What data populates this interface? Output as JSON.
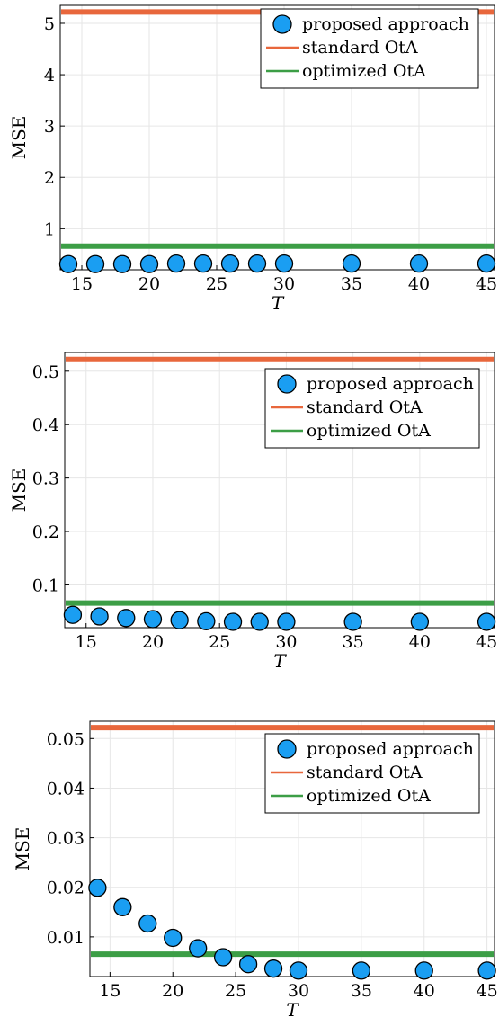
{
  "chart_data": [
    {
      "type": "scatter",
      "xlabel": "T",
      "ylabel": "MSE",
      "xlim": [
        13.4,
        45.6
      ],
      "ylim": [
        0.2,
        5.35
      ],
      "xticks": [
        15,
        20,
        25,
        30,
        35,
        40,
        45
      ],
      "yticks": [
        1,
        2,
        3,
        4,
        5
      ],
      "ytick_labels": [
        "1",
        "2",
        "3",
        "4",
        "5"
      ],
      "grid": true,
      "legend_position": "top-right",
      "series": [
        {
          "name": "proposed approach",
          "kind": "points",
          "color": "#1a9ef2",
          "x": [
            14,
            16,
            18,
            20,
            22,
            24,
            26,
            28,
            30,
            35,
            40,
            45
          ],
          "y": [
            0.31,
            0.31,
            0.31,
            0.31,
            0.32,
            0.32,
            0.32,
            0.32,
            0.32,
            0.32,
            0.32,
            0.32
          ]
        },
        {
          "name": "standard OtA",
          "kind": "hline",
          "color": "#e8673c",
          "y": 5.22
        },
        {
          "name": "optimized OtA",
          "kind": "hline",
          "color": "#3c9e46",
          "y": 0.66
        }
      ]
    },
    {
      "type": "scatter",
      "xlabel": "T",
      "ylabel": "MSE",
      "xlim": [
        13.4,
        45.6
      ],
      "ylim": [
        0.02,
        0.535
      ],
      "xticks": [
        15,
        20,
        25,
        30,
        35,
        40,
        45
      ],
      "yticks": [
        0.1,
        0.2,
        0.3,
        0.4,
        0.5
      ],
      "ytick_labels": [
        "0.1",
        "0.2",
        "0.3",
        "0.4",
        "0.5"
      ],
      "grid": true,
      "legend_position": "top-right",
      "series": [
        {
          "name": "proposed approach",
          "kind": "points",
          "color": "#1a9ef2",
          "x": [
            14,
            16,
            18,
            20,
            22,
            24,
            26,
            28,
            30,
            35,
            40,
            45
          ],
          "y": [
            0.044,
            0.041,
            0.038,
            0.036,
            0.034,
            0.032,
            0.031,
            0.031,
            0.031,
            0.031,
            0.031,
            0.031
          ]
        },
        {
          "name": "standard OtA",
          "kind": "hline",
          "color": "#e8673c",
          "y": 0.522
        },
        {
          "name": "optimized OtA",
          "kind": "hline",
          "color": "#3c9e46",
          "y": 0.066
        }
      ]
    },
    {
      "type": "scatter",
      "xlabel": "T",
      "ylabel": "MSE",
      "xlim": [
        13.4,
        45.6
      ],
      "ylim": [
        0.002,
        0.0535
      ],
      "xticks": [
        15,
        20,
        25,
        30,
        35,
        40,
        45
      ],
      "yticks": [
        0.01,
        0.02,
        0.03,
        0.04,
        0.05
      ],
      "ytick_labels": [
        "0.01",
        "0.02",
        "0.03",
        "0.04",
        "0.05"
      ],
      "grid": true,
      "legend_position": "top-right",
      "series": [
        {
          "name": "proposed approach",
          "kind": "points",
          "color": "#1a9ef2",
          "x": [
            14,
            16,
            18,
            20,
            22,
            24,
            26,
            28,
            30,
            35,
            40,
            45
          ],
          "y": [
            0.0199,
            0.016,
            0.0127,
            0.0098,
            0.0077,
            0.0059,
            0.0045,
            0.0036,
            0.0032,
            0.0032,
            0.0032,
            0.0032
          ]
        },
        {
          "name": "standard OtA",
          "kind": "hline",
          "color": "#e8673c",
          "y": 0.0522
        },
        {
          "name": "optimized OtA",
          "kind": "hline",
          "color": "#3c9e46",
          "y": 0.0065
        }
      ]
    }
  ]
}
